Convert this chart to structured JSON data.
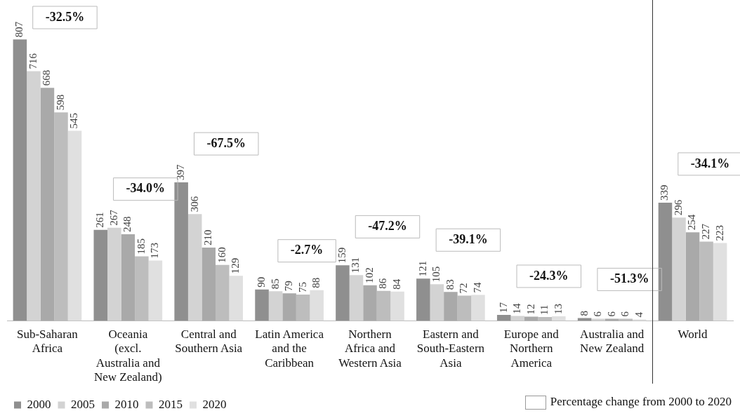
{
  "chart_data": {
    "type": "bar",
    "categories": [
      "Sub-Saharan Africa",
      "Oceania (excl. Australia and New Zealand)",
      "Central and Southern Asia",
      "Latin America and the Caribbean",
      "Northern Africa and Western Asia",
      "Eastern and South-Eastern Asia",
      "Europe and Northern America",
      "Australia and New Zealand",
      "World"
    ],
    "series": [
      {
        "name": "2000",
        "color": "#8f8f8f",
        "values": [
          807,
          261,
          397,
          90,
          159,
          121,
          17,
          8,
          339
        ]
      },
      {
        "name": "2005",
        "color": "#d3d3d3",
        "values": [
          716,
          267,
          306,
          85,
          131,
          105,
          14,
          6,
          296
        ]
      },
      {
        "name": "2010",
        "color": "#a9a9a9",
        "values": [
          668,
          248,
          210,
          79,
          102,
          83,
          12,
          6,
          254
        ]
      },
      {
        "name": "2015",
        "color": "#bdbdbd",
        "values": [
          598,
          185,
          160,
          75,
          86,
          72,
          11,
          6,
          227
        ]
      },
      {
        "name": "2020",
        "color": "#e0e0e0",
        "values": [
          545,
          173,
          129,
          88,
          84,
          74,
          13,
          4,
          223
        ]
      }
    ],
    "ylim": [
      0,
      900
    ],
    "tick_labels": "x",
    "grid": false,
    "legend": "bottom left",
    "data_labels": true,
    "annotations": [
      "-32.5%",
      "-34.0%",
      "-67.5%",
      "-2.7%",
      "-47.2%",
      "-39.1%",
      "-24.3%",
      "-51.3%",
      "-34.1%",
      "Percentage change from 2000 to 2020"
    ]
  }
}
